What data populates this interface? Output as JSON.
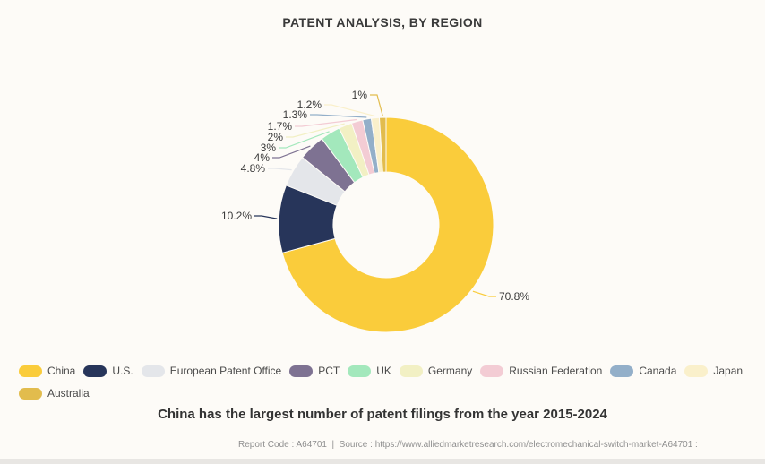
{
  "title": "PATENT ANALYSIS, BY REGION",
  "caption": "China has the largest number of patent filings from the year 2015-2024",
  "footer": "Report Code : A64701  |  Source : https://www.alliedmarketresearch.com/electromechanical-switch-market-A64701 :",
  "chart_data": {
    "type": "pie",
    "subtype": "donut",
    "title": "PATENT ANALYSIS, BY REGION",
    "legend_position": "bottom",
    "start_angle_deg": 0,
    "direction": "clockwise",
    "segments": [
      {
        "label": "China",
        "value": 70.8,
        "display": "70.8%",
        "color": "#FACC3B"
      },
      {
        "label": "U.S.",
        "value": 10.2,
        "display": "10.2%",
        "color": "#27355A"
      },
      {
        "label": "European Patent Office",
        "value": 4.8,
        "display": "4.8%",
        "color": "#E4E6EA"
      },
      {
        "label": "PCT",
        "value": 4,
        "display": "4%",
        "color": "#7E7292"
      },
      {
        "label": "UK",
        "value": 3,
        "display": "3%",
        "color": "#A3E8BC"
      },
      {
        "label": "Germany",
        "value": 2,
        "display": "2%",
        "color": "#F2F0C4"
      },
      {
        "label": "Russian Federation",
        "value": 1.7,
        "display": "1.7%",
        "color": "#F3CCD4"
      },
      {
        "label": "Canada",
        "value": 1.3,
        "display": "1.3%",
        "color": "#93AFC9"
      },
      {
        "label": "Japan",
        "value": 1.2,
        "display": "1.2%",
        "color": "#FAF0CB"
      },
      {
        "label": "Australia",
        "value": 1,
        "display": "1%",
        "color": "#E2BC4D"
      }
    ]
  }
}
